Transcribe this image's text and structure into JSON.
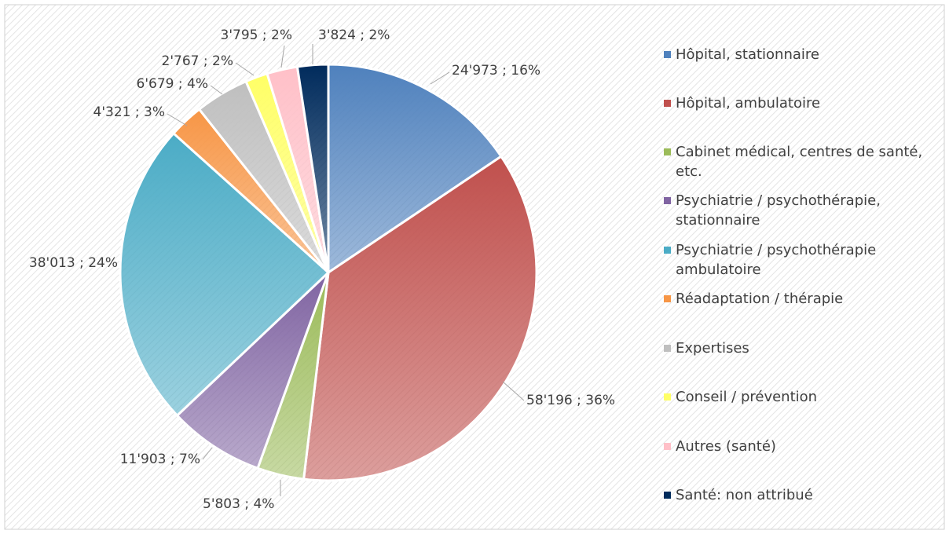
{
  "chart_data": {
    "type": "pie",
    "categories": [
      "Hôpital, stationnaire",
      "Hôpital, ambulatoire",
      "Cabinet médical, centres de santé, etc.",
      "Psychiatrie / psychothérapie, stationnaire",
      "Psychiatrie / psychothérapie ambulatoire",
      "Réadaptation / thérapie",
      "Expertises",
      "Conseil / prévention",
      "Autres (santé)",
      "Santé: non attribué"
    ],
    "values": [
      24973,
      58196,
      5803,
      11903,
      38013,
      4321,
      6679,
      2767,
      3795,
      3824
    ],
    "value_labels": [
      "24'973 ; 16%",
      "58'196 ; 36%",
      "5'803 ; 4%",
      "11'903 ; 7%",
      "38'013 ; 24%",
      "4'321 ; 3%",
      "6'679 ; 4%",
      "2'767 ; 2%",
      "3'795 ; 2%",
      "3'824 ; 2%"
    ],
    "colors": [
      "#4f81bd",
      "#c0504d",
      "#9bbb59",
      "#8064a2",
      "#4bacc6",
      "#f79646",
      "#bfbfbf",
      "#ffff66",
      "#ffc0c8",
      "#002b5c"
    ],
    "legend": "right"
  }
}
